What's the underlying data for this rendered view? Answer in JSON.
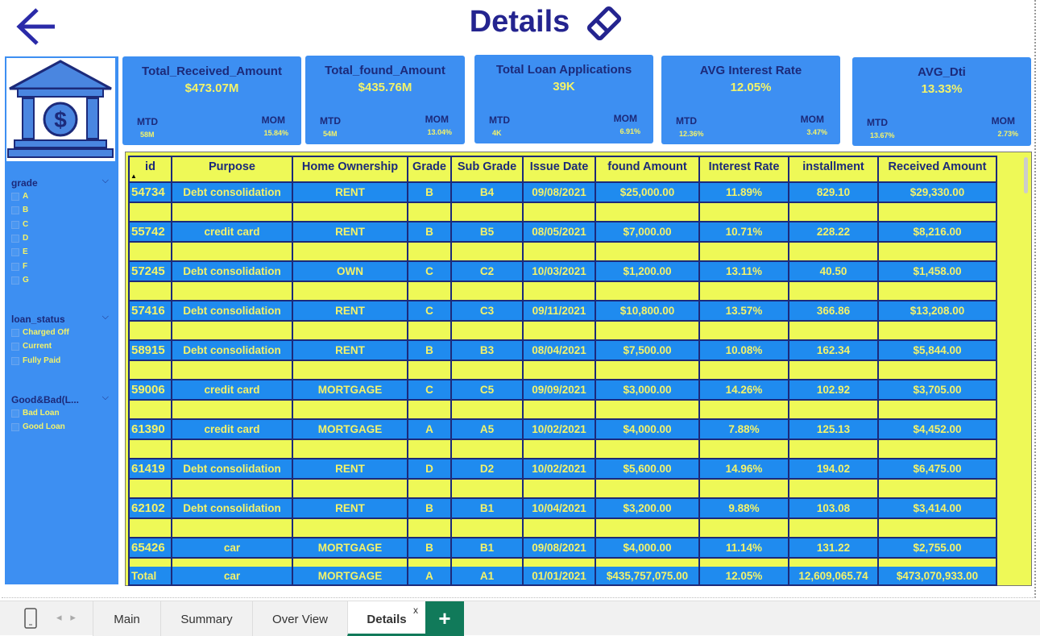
{
  "header": {
    "title": "Details"
  },
  "kpis": [
    {
      "title": "Total_Received_Amount",
      "value": "$473.07M",
      "mtd_label": "MTD",
      "mtd": "58M",
      "mom_label": "MOM",
      "mom": "15.84%"
    },
    {
      "title": "Total_found_Amount",
      "value": "$435.76M",
      "mtd_label": "MTD",
      "mtd": "54M",
      "mom_label": "MOM",
      "mom": "13.04%"
    },
    {
      "title": "Total Loan Applications",
      "value": "39K",
      "mtd_label": "MTD",
      "mtd": "4K",
      "mom_label": "MOM",
      "mom": "6.91%"
    },
    {
      "title": "AVG Interest Rate",
      "value": "12.05%",
      "mtd_label": "MTD",
      "mtd": "12.36%",
      "mom_label": "MOM",
      "mom": "3.47%"
    },
    {
      "title": "AVG_Dti",
      "value": "13.33%",
      "mtd_label": "MTD",
      "mtd": "13.67%",
      "mom_label": "MOM",
      "mom": "2.73%"
    }
  ],
  "filters": [
    {
      "title": "grade",
      "items": [
        "A",
        "B",
        "C",
        "D",
        "E",
        "F",
        "G"
      ]
    },
    {
      "title": "loan_status",
      "items": [
        "Charged Off",
        "Current",
        "Fully Paid"
      ]
    },
    {
      "title": "Good&Bad(L...",
      "items": [
        "Bad Loan",
        "Good Loan"
      ]
    }
  ],
  "table": {
    "columns": [
      "id",
      "Purpose",
      "Home Ownership",
      "Grade",
      "Sub Grade",
      "Issue Date",
      "found Amount",
      "Interest Rate",
      "installment",
      "Received Amount"
    ],
    "rows": [
      [
        "54734",
        "Debt consolidation",
        "RENT",
        "B",
        "B4",
        "09/08/2021",
        "$25,000.00",
        "11.89%",
        "829.10",
        "$29,330.00"
      ],
      [
        "55742",
        "credit card",
        "RENT",
        "B",
        "B5",
        "08/05/2021",
        "$7,000.00",
        "10.71%",
        "228.22",
        "$8,216.00"
      ],
      [
        "57245",
        "Debt consolidation",
        "OWN",
        "C",
        "C2",
        "10/03/2021",
        "$1,200.00",
        "13.11%",
        "40.50",
        "$1,458.00"
      ],
      [
        "57416",
        "Debt consolidation",
        "RENT",
        "C",
        "C3",
        "09/11/2021",
        "$10,800.00",
        "13.57%",
        "366.86",
        "$13,208.00"
      ],
      [
        "58915",
        "Debt consolidation",
        "RENT",
        "B",
        "B3",
        "08/04/2021",
        "$7,500.00",
        "10.08%",
        "162.34",
        "$5,844.00"
      ],
      [
        "59006",
        "credit card",
        "MORTGAGE",
        "C",
        "C5",
        "09/09/2021",
        "$3,000.00",
        "14.26%",
        "102.92",
        "$3,705.00"
      ],
      [
        "61390",
        "credit card",
        "MORTGAGE",
        "A",
        "A5",
        "10/02/2021",
        "$4,000.00",
        "7.88%",
        "125.13",
        "$4,452.00"
      ],
      [
        "61419",
        "Debt consolidation",
        "RENT",
        "D",
        "D2",
        "10/02/2021",
        "$5,600.00",
        "14.96%",
        "194.02",
        "$6,475.00"
      ],
      [
        "62102",
        "Debt consolidation",
        "RENT",
        "B",
        "B1",
        "10/04/2021",
        "$3,200.00",
        "9.88%",
        "103.08",
        "$3,414.00"
      ],
      [
        "65426",
        "car",
        "MORTGAGE",
        "B",
        "B1",
        "09/08/2021",
        "$4,000.00",
        "11.14%",
        "131.22",
        "$2,755.00"
      ]
    ],
    "total": [
      "Total",
      "car",
      "MORTGAGE",
      "A",
      "A1",
      "01/01/2021",
      "$435,757,075.00",
      "12.05%",
      "12,609,065.74",
      "$473,070,933.00"
    ]
  },
  "tabs": [
    "Main",
    "Summary",
    "Over View",
    "Details"
  ],
  "close_label": "x"
}
